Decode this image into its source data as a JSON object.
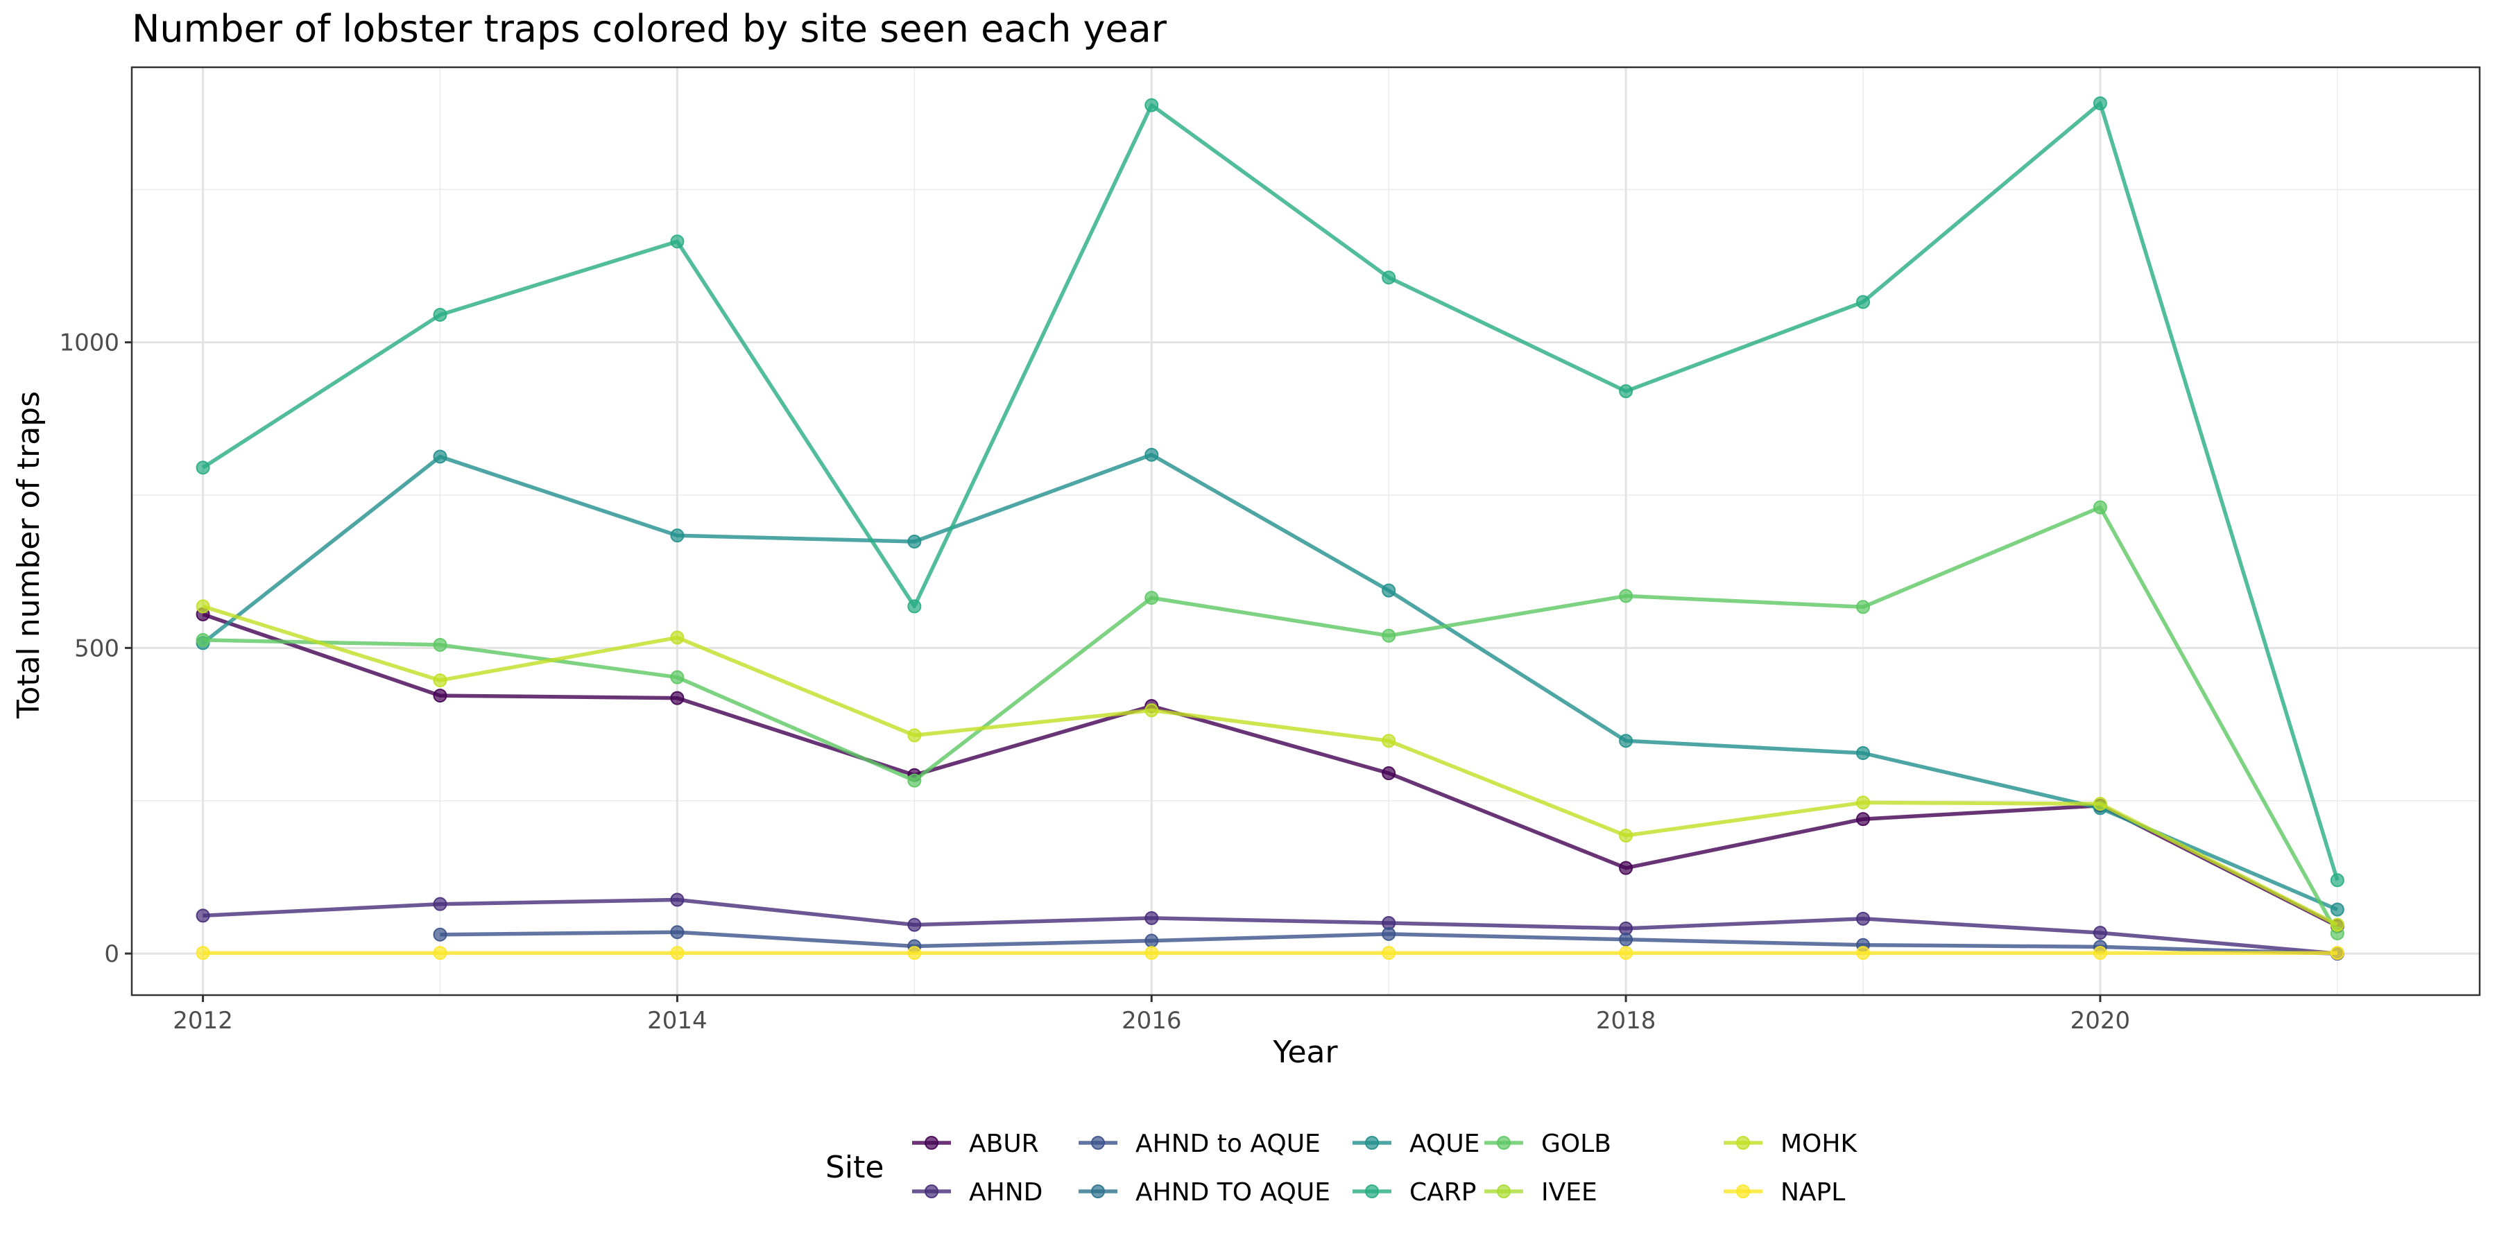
{
  "chart_data": {
    "type": "line",
    "title": "Number of lobster traps colored by site seen each year",
    "xlabel": "Year",
    "ylabel": "Total number of traps",
    "xlim": [
      2011.7,
      2021.6
    ],
    "ylim": [
      -68,
      1450
    ],
    "x_ticks": [
      2012,
      2014,
      2016,
      2018,
      2020
    ],
    "y_ticks": [
      0,
      500,
      1000
    ],
    "grid": true,
    "legend": {
      "title": "Site",
      "position": "bottom"
    },
    "series": [
      {
        "name": "ABUR",
        "color": "#440154",
        "points": [
          [
            2012,
            555
          ],
          [
            2013,
            422
          ],
          [
            2014,
            418
          ],
          [
            2015,
            292
          ],
          [
            2016,
            405
          ],
          [
            2017,
            295
          ],
          [
            2018,
            140
          ],
          [
            2019,
            220
          ],
          [
            2020,
            242
          ],
          [
            2021,
            45
          ]
        ]
      },
      {
        "name": "AHND",
        "color": "#472D7B",
        "points": [
          [
            2012,
            62
          ],
          [
            2013,
            81
          ],
          [
            2014,
            88
          ],
          [
            2015,
            47
          ],
          [
            2016,
            58
          ],
          [
            2017,
            50
          ],
          [
            2018,
            41
          ],
          [
            2019,
            57
          ],
          [
            2020,
            34
          ],
          [
            2021,
            0
          ]
        ]
      },
      {
        "name": "AHND to AQUE",
        "color": "#3B528B",
        "points": [
          [
            2013,
            31
          ],
          [
            2014,
            35
          ],
          [
            2015,
            12
          ],
          [
            2016,
            21
          ],
          [
            2017,
            32
          ],
          [
            2018,
            23
          ],
          [
            2019,
            14
          ],
          [
            2020,
            11
          ],
          [
            2021,
            0
          ]
        ]
      },
      {
        "name": "AHND TO AQUE",
        "color": "#2C728E",
        "points": []
      },
      {
        "name": "AQUE",
        "color": "#21908C",
        "points": [
          [
            2012,
            508
          ],
          [
            2013,
            813
          ],
          [
            2014,
            684
          ],
          [
            2015,
            674
          ],
          [
            2016,
            816
          ],
          [
            2017,
            594
          ],
          [
            2018,
            348
          ],
          [
            2019,
            328
          ],
          [
            2020,
            238
          ],
          [
            2021,
            72
          ]
        ]
      },
      {
        "name": "CARP",
        "color": "#27AD81",
        "points": [
          [
            2012,
            795
          ],
          [
            2013,
            1045
          ],
          [
            2014,
            1165
          ],
          [
            2015,
            568
          ],
          [
            2016,
            1388
          ],
          [
            2017,
            1106
          ],
          [
            2018,
            920
          ],
          [
            2019,
            1066
          ],
          [
            2020,
            1391
          ],
          [
            2021,
            120
          ]
        ]
      },
      {
        "name": "GOLB",
        "color": "#5DC863",
        "points": [
          [
            2012,
            513
          ],
          [
            2013,
            505
          ],
          [
            2014,
            452
          ],
          [
            2015,
            283
          ],
          [
            2016,
            582
          ],
          [
            2017,
            520
          ],
          [
            2018,
            585
          ],
          [
            2019,
            567
          ],
          [
            2020,
            730
          ],
          [
            2021,
            33
          ]
        ]
      },
      {
        "name": "IVEE",
        "color": "#AADC32",
        "points": []
      },
      {
        "name": "MOHK",
        "color": "#C2DF23",
        "points": [
          [
            2012,
            568
          ],
          [
            2013,
            447
          ],
          [
            2014,
            517
          ],
          [
            2015,
            357
          ],
          [
            2016,
            398
          ],
          [
            2017,
            348
          ],
          [
            2018,
            193
          ],
          [
            2019,
            247
          ],
          [
            2020,
            245
          ],
          [
            2021,
            47
          ]
        ]
      },
      {
        "name": "NAPL",
        "color": "#FDE725",
        "points": [
          [
            2012,
            1
          ],
          [
            2013,
            1
          ],
          [
            2014,
            1
          ],
          [
            2015,
            1
          ],
          [
            2016,
            1
          ],
          [
            2017,
            1
          ],
          [
            2018,
            1
          ],
          [
            2019,
            1
          ],
          [
            2020,
            1
          ],
          [
            2021,
            1
          ]
        ]
      }
    ]
  }
}
